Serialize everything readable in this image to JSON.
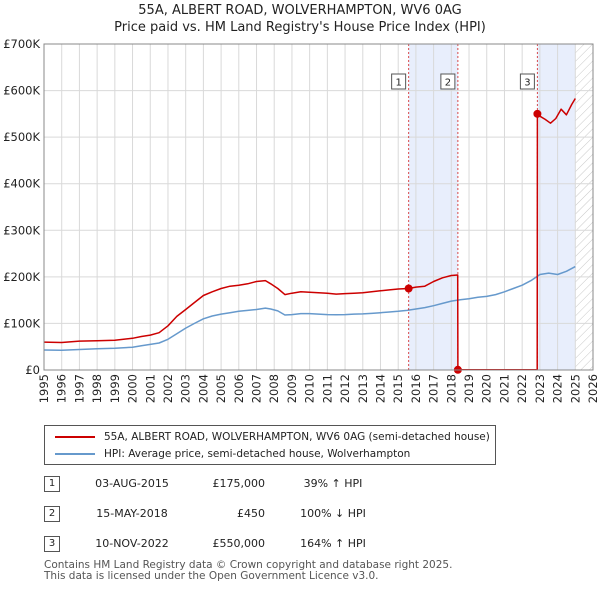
{
  "title_line1": "55A, ALBERT ROAD, WOLVERHAMPTON, WV6 0AG",
  "title_line2": "Price paid vs. HM Land Registry's House Price Index (HPI)",
  "chart_data": {
    "type": "line",
    "title": "55A, ALBERT ROAD, WOLVERHAMPTON, WV6 0AG — Price paid vs. HM Land Registry's House Price Index (HPI)",
    "xlim": [
      1995,
      2026
    ],
    "ylim": [
      0,
      700000
    ],
    "yticks": [
      0,
      100000,
      200000,
      300000,
      400000,
      500000,
      600000,
      700000
    ],
    "ytick_labels": [
      "£0",
      "£100K",
      "£200K",
      "£300K",
      "£400K",
      "£500K",
      "£600K",
      "£700K"
    ],
    "xticks": [
      "1995",
      "1996",
      "1997",
      "1998",
      "1999",
      "2000",
      "2001",
      "2002",
      "2003",
      "2004",
      "2005",
      "2006",
      "2007",
      "2008",
      "2009",
      "2010",
      "2011",
      "2012",
      "2013",
      "2014",
      "2015",
      "2016",
      "2017",
      "2018",
      "2019",
      "2020",
      "2021",
      "2022",
      "2023",
      "2024",
      "2025",
      "2026"
    ],
    "grid": true,
    "shaded_regions": [
      {
        "from": 2015.59,
        "to": 2018.37
      },
      {
        "from": 2022.86,
        "to": 2025.0
      }
    ],
    "hatched_region": {
      "from": 2025.0,
      "to": 2026.0
    },
    "series": [
      {
        "name": "55A, ALBERT ROAD, WOLVERHAMPTON, WV6 0AG (semi-detached house)",
        "color": "#cc0000",
        "x": [
          1995.0,
          1996.0,
          1997.0,
          1998.0,
          1999.0,
          2000.0,
          2000.5,
          2001.0,
          2001.5,
          2002.0,
          2002.5,
          2003.0,
          2003.5,
          2004.0,
          2004.5,
          2005.0,
          2005.5,
          2006.0,
          2006.5,
          2007.0,
          2007.5,
          2007.8,
          2008.2,
          2008.6,
          2009.0,
          2009.5,
          2010.0,
          2010.5,
          2011.0,
          2011.5,
          2012.0,
          2012.5,
          2013.0,
          2013.5,
          2014.0,
          2014.5,
          2015.0,
          2015.59,
          2016.0,
          2016.5,
          2017.0,
          2017.5,
          2018.0,
          2018.36,
          2018.37,
          2019.0,
          2020.0,
          2021.0,
          2022.0,
          2022.85,
          2022.86,
          2023.0,
          2023.3,
          2023.6,
          2023.9,
          2024.2,
          2024.5,
          2024.8,
          2025.0
        ],
        "y": [
          60000,
          59000,
          62000,
          63000,
          64000,
          68000,
          72000,
          75000,
          80000,
          95000,
          115000,
          130000,
          145000,
          160000,
          168000,
          175000,
          180000,
          182000,
          185000,
          190000,
          192000,
          185000,
          175000,
          162000,
          165000,
          168000,
          167000,
          166000,
          165000,
          163000,
          164000,
          165000,
          166000,
          168000,
          170000,
          172000,
          174000,
          175000,
          178000,
          180000,
          190000,
          198000,
          203000,
          204000,
          450,
          450,
          450,
          450,
          450,
          450,
          550000,
          545000,
          538000,
          530000,
          540000,
          560000,
          548000,
          570000,
          583000
        ]
      },
      {
        "name": "HPI: Average price, semi-detached house, Wolverhampton",
        "color": "#6699cc",
        "x": [
          1995.0,
          1996.0,
          1997.0,
          1998.0,
          1999.0,
          2000.0,
          2000.5,
          2001.0,
          2001.5,
          2002.0,
          2002.5,
          2003.0,
          2003.5,
          2004.0,
          2004.5,
          2005.0,
          2005.5,
          2006.0,
          2006.5,
          2007.0,
          2007.5,
          2007.8,
          2008.2,
          2008.6,
          2009.0,
          2009.5,
          2010.0,
          2010.5,
          2011.0,
          2011.5,
          2012.0,
          2012.5,
          2013.0,
          2013.5,
          2014.0,
          2014.5,
          2015.0,
          2015.5,
          2016.0,
          2016.5,
          2017.0,
          2017.5,
          2018.0,
          2018.5,
          2019.0,
          2019.5,
          2020.0,
          2020.5,
          2021.0,
          2021.5,
          2022.0,
          2022.5,
          2023.0,
          2023.5,
          2024.0,
          2024.5,
          2025.0
        ],
        "y": [
          43000,
          42500,
          44000,
          45500,
          46500,
          49000,
          52000,
          55000,
          58000,
          66000,
          78000,
          90000,
          100000,
          110000,
          116000,
          120000,
          123000,
          126000,
          128000,
          130000,
          133000,
          131000,
          127000,
          118000,
          119000,
          121000,
          121000,
          120000,
          119000,
          118500,
          119000,
          120000,
          120500,
          121500,
          123000,
          124500,
          126000,
          128000,
          131000,
          134000,
          138000,
          143000,
          148000,
          151000,
          153000,
          156000,
          158000,
          162000,
          168000,
          175000,
          182000,
          192000,
          205000,
          208000,
          205000,
          212000,
          222000
        ]
      }
    ],
    "markers": [
      {
        "label": "1",
        "x": 2015.59,
        "y": 175000
      },
      {
        "label": "2",
        "x": 2018.37,
        "y": 450
      },
      {
        "label": "3",
        "x": 2022.86,
        "y": 550000
      }
    ]
  },
  "legend": {
    "property_label": "55A, ALBERT ROAD, WOLVERHAMPTON, WV6 0AG (semi-detached house)",
    "hpi_label": "HPI: Average price, semi-detached house, Wolverhampton"
  },
  "transactions": [
    {
      "num": "1",
      "date": "03-AUG-2015",
      "price": "£175,000",
      "pct": "39% ↑ HPI"
    },
    {
      "num": "2",
      "date": "15-MAY-2018",
      "price": "£450",
      "pct": "100% ↓ HPI"
    },
    {
      "num": "3",
      "date": "10-NOV-2022",
      "price": "£550,000",
      "pct": "164% ↑ HPI"
    }
  ],
  "footer_line1": "Contains HM Land Registry data © Crown copyright and database right 2025.",
  "footer_line2": "This data is licensed under the Open Government Licence v3.0.",
  "colors": {
    "property": "#cc0000",
    "hpi": "#6699cc",
    "shade": "#e8eefc",
    "grid": "#d9d9d9"
  }
}
